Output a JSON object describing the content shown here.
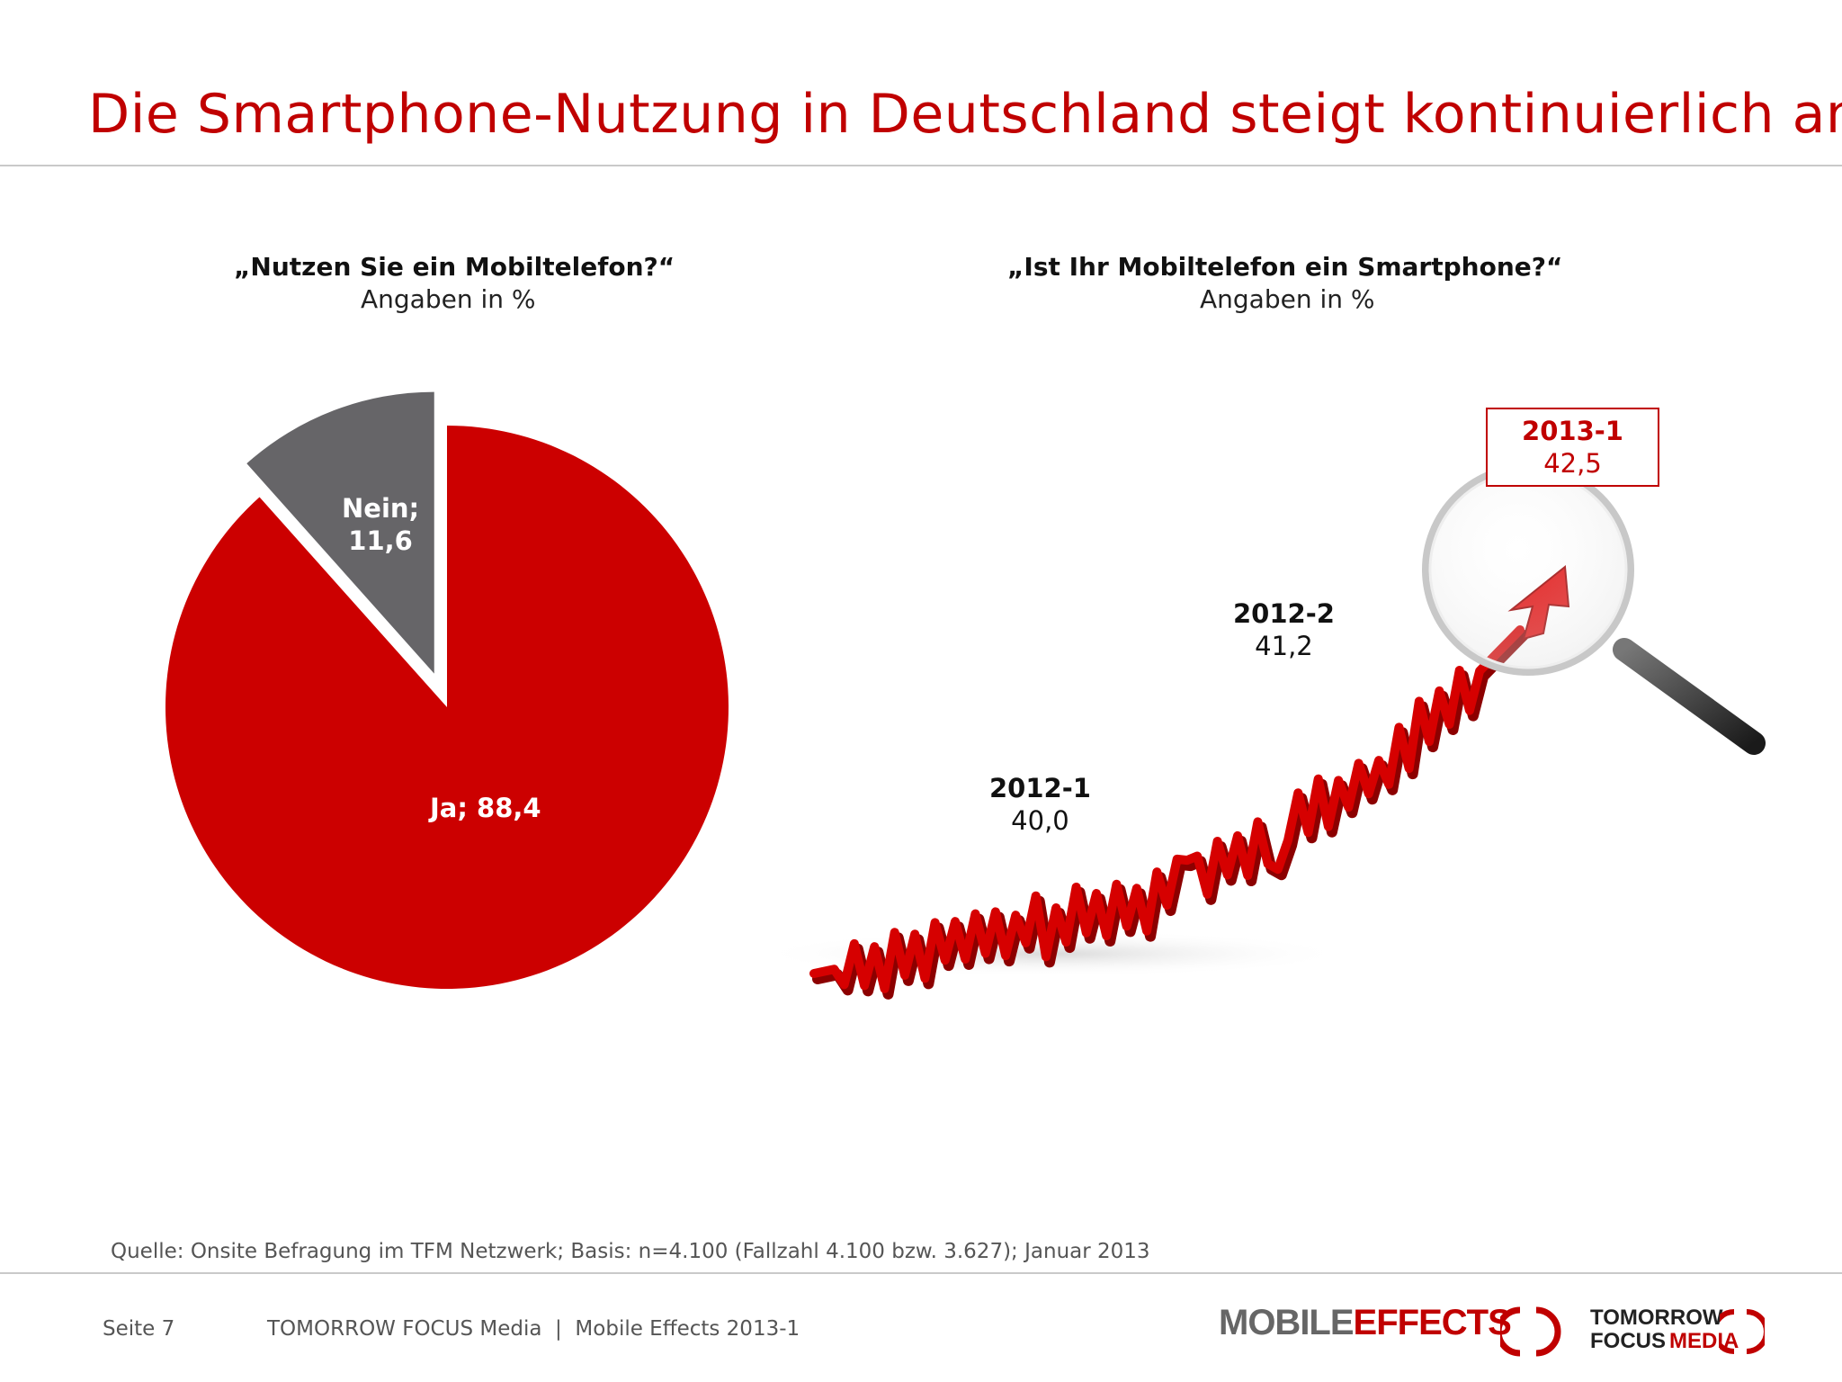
{
  "header": {
    "title": "Die Smartphone-Nutzung in Deutschland steigt kontinuierlich an"
  },
  "chart_data": [
    {
      "type": "pie",
      "title": "„Nutzen Sie ein Mobiltelefon?“",
      "subtitle": "Angaben in %",
      "slices": [
        {
          "label": "Ja; 88,4",
          "value": 88.4,
          "color": "#cc0000"
        },
        {
          "label_line1": "Nein;",
          "label_line2": "11,6",
          "value": 11.6,
          "color": "#666568"
        }
      ]
    },
    {
      "type": "line",
      "title": "„Ist Ihr Mobiltelefon ein Smartphone?“",
      "subtitle": "Angaben in %",
      "categories": [
        "2012-1",
        "2012-2",
        "2013-1"
      ],
      "values": [
        40.0,
        41.2,
        42.5
      ],
      "value_labels": [
        "40,0",
        "41,2",
        "42,5"
      ],
      "highlight": "2013-1",
      "color": "#cc0000"
    }
  ],
  "footer": {
    "source": "Quelle: Onsite Befragung im TFM Netzwerk; Basis: n=4.100 (Fallzahl 4.100 bzw. 3.627); Januar 2013",
    "page": "Seite 7",
    "publisher": "TOMORROW FOCUS Media  |  Mobile Effects 2013-1"
  },
  "logos": {
    "mobile_effects": {
      "part1": "MOBILE",
      "part2": "EFFECTS"
    },
    "tomorrow_focus": {
      "line1": "TOMORROW",
      "line2a": "FOCUS",
      "line2b": "MEDIA"
    }
  }
}
